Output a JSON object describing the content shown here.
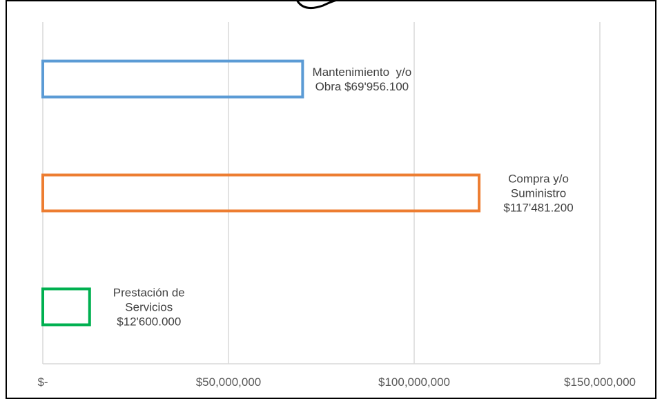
{
  "chart_data": {
    "type": "bar",
    "orientation": "horizontal",
    "categories": [
      "Mantenimiento y/o Obra",
      "Compra y/o Suministro",
      "Prestación de Servicios"
    ],
    "values": [
      69956100,
      117481200,
      12600000
    ],
    "bar_style": "outline",
    "colors": [
      "#5b9bd5",
      "#ed7d31",
      "#00b050"
    ],
    "data_labels": [
      [
        "Mantenimiento  y/o",
        "Obra $69'956.100"
      ],
      [
        "Compra y/o",
        "Suministro",
        "$117'481.200"
      ],
      [
        "Prestación de",
        "Servicios",
        "$12'600.000"
      ]
    ],
    "x_ticks": [
      0,
      50000000,
      100000000,
      150000000
    ],
    "x_tick_labels": [
      "$-",
      "$50,000,000",
      "$100,000,000",
      "$150,000,000"
    ],
    "xlim": [
      0,
      150000000
    ],
    "grid": "vertical",
    "title": "",
    "xlabel": "",
    "ylabel": ""
  }
}
